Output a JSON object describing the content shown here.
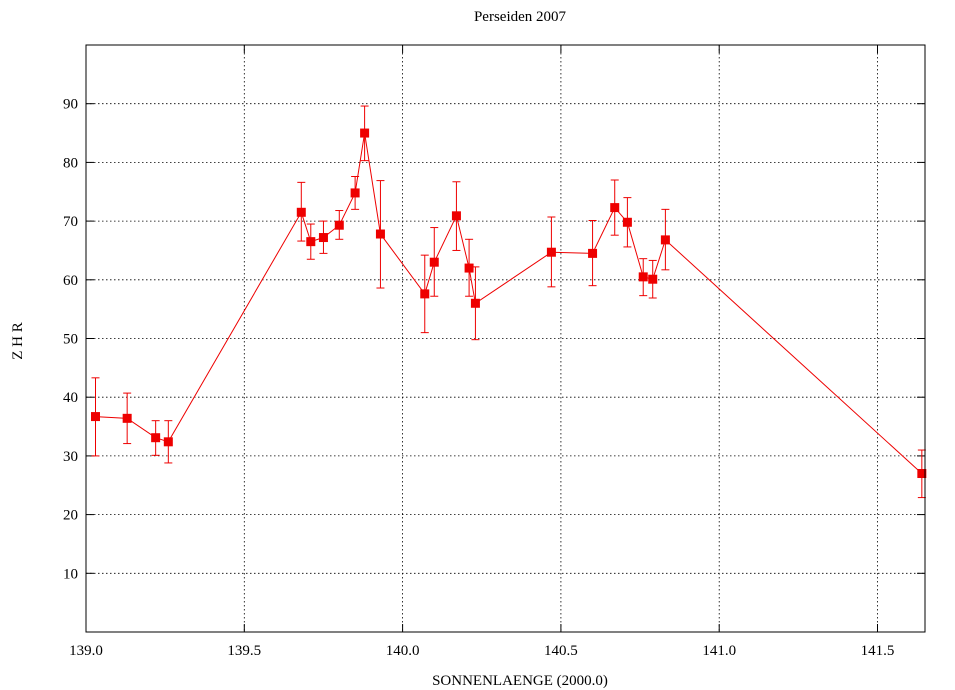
{
  "chart_data": {
    "type": "scatter",
    "title": "Perseiden 2007",
    "xlabel": "SONNENLAENGE (2000.0)",
    "ylabel": "Z H R",
    "xlim": [
      139.0,
      141.65
    ],
    "ylim": [
      0,
      100
    ],
    "xticks": [
      139.0,
      139.5,
      140.0,
      140.5,
      141.0,
      141.5
    ],
    "xtick_labels": [
      "139.0",
      "139.5",
      "140.0",
      "140.5",
      "141.0",
      "141.5"
    ],
    "yticks": [
      10,
      20,
      30,
      40,
      50,
      60,
      70,
      80,
      90
    ],
    "ytick_labels": [
      "10",
      "20",
      "30",
      "40",
      "50",
      "60",
      "70",
      "80",
      "90"
    ],
    "grid": true,
    "legend": false,
    "color": "#ee0000",
    "series": [
      {
        "points": [
          {
            "x": 139.03,
            "y": 36.7,
            "err_low": 30.0,
            "err_high": 43.3
          },
          {
            "x": 139.13,
            "y": 36.4,
            "err_low": 32.1,
            "err_high": 40.7
          },
          {
            "x": 139.22,
            "y": 33.1,
            "err_low": 30.1,
            "err_high": 36.0
          },
          {
            "x": 139.26,
            "y": 32.4,
            "err_low": 28.8,
            "err_high": 36.0
          },
          {
            "x": 139.68,
            "y": 71.5,
            "err_low": 66.6,
            "err_high": 76.6
          },
          {
            "x": 139.71,
            "y": 66.5,
            "err_low": 63.5,
            "err_high": 69.5
          },
          {
            "x": 139.75,
            "y": 67.2,
            "err_low": 64.5,
            "err_high": 70.0
          },
          {
            "x": 139.8,
            "y": 69.3,
            "err_low": 66.9,
            "err_high": 71.8
          },
          {
            "x": 139.85,
            "y": 74.8,
            "err_low": 72.0,
            "err_high": 77.6
          },
          {
            "x": 139.88,
            "y": 85.0,
            "err_low": 80.3,
            "err_high": 89.6
          },
          {
            "x": 139.93,
            "y": 67.8,
            "err_low": 58.6,
            "err_high": 76.9
          },
          {
            "x": 140.07,
            "y": 57.6,
            "err_low": 51.0,
            "err_high": 64.2
          },
          {
            "x": 140.1,
            "y": 63.0,
            "err_low": 57.2,
            "err_high": 68.9
          },
          {
            "x": 140.17,
            "y": 70.9,
            "err_low": 65.0,
            "err_high": 76.7
          },
          {
            "x": 140.21,
            "y": 62.0,
            "err_low": 57.2,
            "err_high": 66.9
          },
          {
            "x": 140.23,
            "y": 56.0,
            "err_low": 49.8,
            "err_high": 62.2
          },
          {
            "x": 140.47,
            "y": 64.7,
            "err_low": 58.8,
            "err_high": 70.7
          },
          {
            "x": 140.6,
            "y": 64.5,
            "err_low": 59.0,
            "err_high": 70.1
          },
          {
            "x": 140.67,
            "y": 72.3,
            "err_low": 67.6,
            "err_high": 77.0
          },
          {
            "x": 140.71,
            "y": 69.8,
            "err_low": 65.6,
            "err_high": 74.0
          },
          {
            "x": 140.76,
            "y": 60.5,
            "err_low": 57.3,
            "err_high": 63.6
          },
          {
            "x": 140.79,
            "y": 60.1,
            "err_low": 56.9,
            "err_high": 63.3
          },
          {
            "x": 140.83,
            "y": 66.8,
            "err_low": 61.7,
            "err_high": 72.0
          },
          {
            "x": 141.64,
            "y": 27.0,
            "err_low": 22.9,
            "err_high": 31.0
          }
        ]
      }
    ]
  }
}
